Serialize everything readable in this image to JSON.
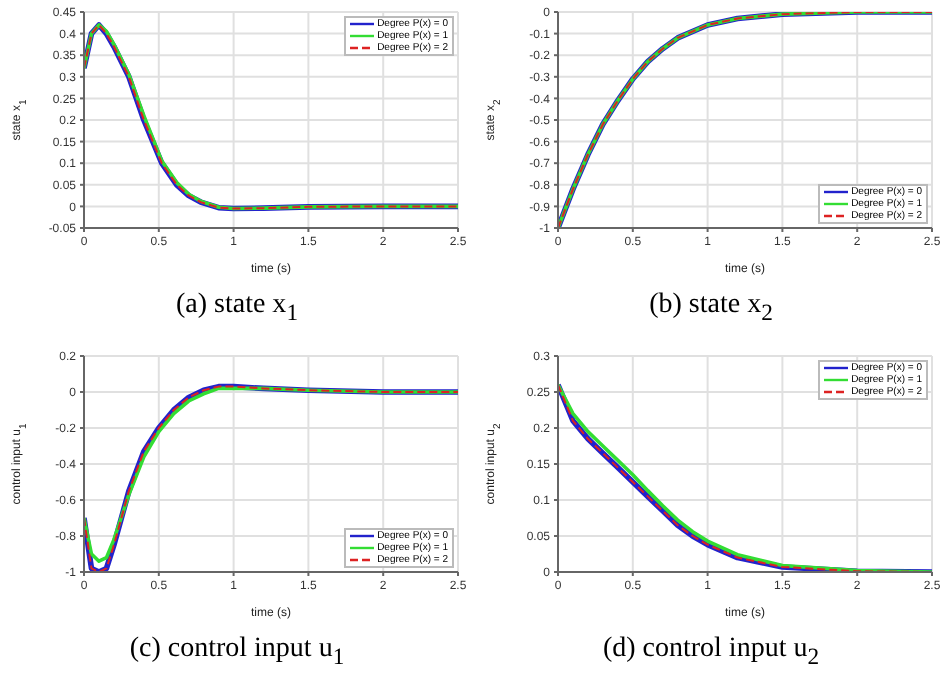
{
  "chart_data": [
    {
      "type": "line",
      "title": "(a) state x$_{1}$",
      "xlabel": "time (s)",
      "ylabel": "state x$_{1}$",
      "x": [
        0,
        0.05,
        0.1,
        0.15,
        0.2,
        0.3,
        0.4,
        0.52,
        0.62,
        0.7,
        0.78,
        0.9,
        1,
        1.2,
        1.5,
        2,
        2.5
      ],
      "xlim": [
        0,
        2.5
      ],
      "xticks": [
        0,
        0.5,
        1,
        1.5,
        2,
        2.5
      ],
      "ylim": [
        -0.05,
        0.45
      ],
      "yticks": [
        -0.05,
        0,
        0.05,
        0.1,
        0.15,
        0.2,
        0.25,
        0.3,
        0.35,
        0.4,
        0.45
      ],
      "grid": true,
      "legend": "top right",
      "series": [
        {
          "name": "Degree P(x) = 0",
          "color": "#2222cc",
          "line_style": "solid",
          "values": [
            0.32,
            0.4,
            0.42,
            0.4,
            0.37,
            0.3,
            0.2,
            0.1,
            0.05,
            0.025,
            0.01,
            -0.003,
            -0.005,
            -0.004,
            -0.001,
            0,
            0
          ]
        },
        {
          "name": "Degree P(x) = 1",
          "color": "#33dd33",
          "line_style": "solid",
          "values": [
            0.32,
            0.4,
            0.42,
            0.405,
            0.375,
            0.305,
            0.21,
            0.105,
            0.055,
            0.028,
            0.012,
            -0.002,
            -0.005,
            -0.004,
            -0.001,
            0,
            0
          ]
        },
        {
          "name": "Degree P(x) = 2",
          "color": "#dd2222",
          "line_style": "dashed",
          "values": [
            0.32,
            0.4,
            0.42,
            0.4,
            0.37,
            0.3,
            0.2,
            0.1,
            0.05,
            0.025,
            0.01,
            -0.003,
            -0.005,
            -0.004,
            -0.001,
            0,
            0
          ]
        }
      ]
    },
    {
      "type": "line",
      "title": "(b) state x$_{2}$",
      "xlabel": "time (s)",
      "ylabel": "state x$_{2}$",
      "x": [
        0,
        0.1,
        0.2,
        0.3,
        0.4,
        0.5,
        0.6,
        0.7,
        0.8,
        1,
        1.2,
        1.5,
        2,
        2.5
      ],
      "xlim": [
        0,
        2.5
      ],
      "xticks": [
        0,
        0.5,
        1,
        1.5,
        2,
        2.5
      ],
      "ylim": [
        -1,
        0
      ],
      "yticks": [
        -1,
        -0.9,
        -0.8,
        -0.7,
        -0.6,
        -0.5,
        -0.4,
        -0.3,
        -0.2,
        -0.1,
        0
      ],
      "grid": true,
      "legend": "bottom right",
      "series": [
        {
          "name": "Degree P(x) = 0",
          "color": "#2222cc",
          "line_style": "solid",
          "values": [
            -1,
            -0.82,
            -0.66,
            -0.52,
            -0.41,
            -0.31,
            -0.23,
            -0.17,
            -0.12,
            -0.06,
            -0.03,
            -0.01,
            0,
            0
          ]
        },
        {
          "name": "Degree P(x) = 1",
          "color": "#33dd33",
          "line_style": "solid",
          "values": [
            -1,
            -0.82,
            -0.66,
            -0.52,
            -0.41,
            -0.31,
            -0.23,
            -0.17,
            -0.12,
            -0.06,
            -0.03,
            -0.01,
            0,
            0
          ]
        },
        {
          "name": "Degree P(x) = 2",
          "color": "#dd2222",
          "line_style": "dashed",
          "values": [
            -1,
            -0.82,
            -0.66,
            -0.52,
            -0.41,
            -0.31,
            -0.23,
            -0.17,
            -0.12,
            -0.06,
            -0.03,
            -0.01,
            0,
            0
          ]
        }
      ]
    },
    {
      "type": "line",
      "title": "(c) control input u$_{1}$",
      "xlabel": "time (s)",
      "ylabel": "control input u$_{1}$",
      "x": [
        0,
        0.05,
        0.1,
        0.15,
        0.2,
        0.3,
        0.4,
        0.5,
        0.6,
        0.7,
        0.8,
        0.9,
        1,
        1.2,
        1.5,
        2,
        2.5
      ],
      "xlim": [
        0,
        2.5
      ],
      "xticks": [
        0,
        0.5,
        1,
        1.5,
        2,
        2.5
      ],
      "ylim": [
        -1,
        0.2
      ],
      "yticks": [
        -1,
        -0.8,
        -0.6,
        -0.4,
        -0.2,
        0,
        0.2
      ],
      "grid": true,
      "legend": "bottom right",
      "series": [
        {
          "name": "Degree P(x) = 0",
          "color": "#2222cc",
          "line_style": "solid",
          "values": [
            -0.7,
            -0.98,
            -1,
            -0.98,
            -0.85,
            -0.55,
            -0.33,
            -0.2,
            -0.1,
            -0.03,
            0.01,
            0.03,
            0.03,
            0.02,
            0.01,
            0,
            0
          ]
        },
        {
          "name": "Degree P(x) = 1",
          "color": "#33dd33",
          "line_style": "solid",
          "values": [
            -0.7,
            -0.9,
            -0.94,
            -0.92,
            -0.82,
            -0.57,
            -0.36,
            -0.22,
            -0.12,
            -0.05,
            -0.01,
            0.02,
            0.02,
            0.02,
            0.01,
            0,
            0
          ]
        },
        {
          "name": "Degree P(x) = 2",
          "color": "#dd2222",
          "line_style": "dashed",
          "values": [
            -0.7,
            -0.98,
            -1,
            -0.98,
            -0.85,
            -0.55,
            -0.33,
            -0.2,
            -0.1,
            -0.03,
            0.01,
            0.03,
            0.03,
            0.02,
            0.01,
            0,
            0
          ]
        }
      ]
    },
    {
      "type": "line",
      "title": "(d) control input u$_{2}$",
      "xlabel": "time (s)",
      "ylabel": "control input u$_{2}$",
      "x": [
        0,
        0.1,
        0.2,
        0.3,
        0.4,
        0.5,
        0.6,
        0.7,
        0.8,
        0.9,
        1,
        1.2,
        1.5,
        2,
        2.5
      ],
      "xlim": [
        0,
        2.5
      ],
      "xticks": [
        0,
        0.5,
        1,
        1.5,
        2,
        2.5
      ],
      "ylim": [
        0,
        0.3
      ],
      "yticks": [
        0,
        0.05,
        0.1,
        0.15,
        0.2,
        0.25,
        0.3
      ],
      "grid": true,
      "legend": "top right",
      "series": [
        {
          "name": "Degree P(x) = 0",
          "color": "#2222cc",
          "line_style": "solid",
          "values": [
            0.26,
            0.21,
            0.185,
            0.165,
            0.145,
            0.125,
            0.105,
            0.085,
            0.065,
            0.05,
            0.038,
            0.02,
            0.007,
            0.001,
            0
          ]
        },
        {
          "name": "Degree P(x) = 1",
          "color": "#33dd33",
          "line_style": "solid",
          "values": [
            0.26,
            0.22,
            0.195,
            0.175,
            0.155,
            0.135,
            0.113,
            0.092,
            0.072,
            0.056,
            0.043,
            0.024,
            0.009,
            0.002,
            0
          ]
        },
        {
          "name": "Degree P(x) = 2",
          "color": "#dd2222",
          "line_style": "dashed",
          "values": [
            0.26,
            0.21,
            0.185,
            0.165,
            0.145,
            0.125,
            0.105,
            0.085,
            0.065,
            0.05,
            0.038,
            0.02,
            0.007,
            0.001,
            0
          ]
        }
      ]
    }
  ]
}
